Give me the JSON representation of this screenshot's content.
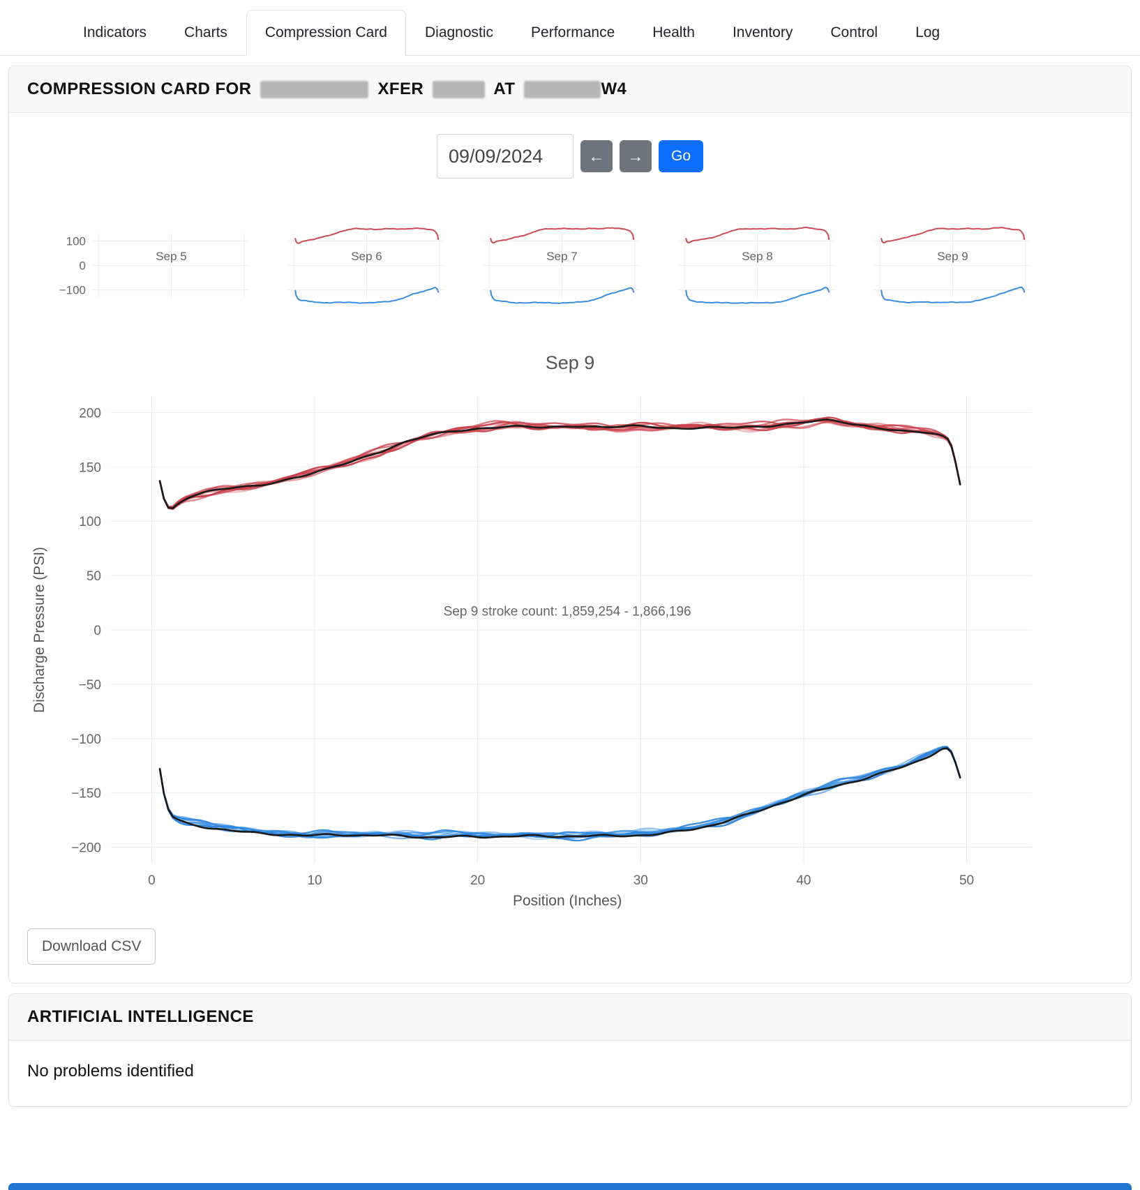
{
  "tabs": {
    "items": [
      {
        "label": "Indicators"
      },
      {
        "label": "Charts"
      },
      {
        "label": "Compression Card"
      },
      {
        "label": "Diagnostic"
      },
      {
        "label": "Performance"
      },
      {
        "label": "Health"
      },
      {
        "label": "Inventory"
      },
      {
        "label": "Control"
      },
      {
        "label": "Log"
      }
    ],
    "active_index": 2
  },
  "card": {
    "title_prefix": "COMPRESSION CARD FOR",
    "title_xfer": "XFER",
    "title_at": "AT",
    "title_suffix": "W4",
    "date_value": "09/09/2024",
    "prev_label": "←",
    "next_label": "→",
    "go_label": "Go",
    "download_label": "Download CSV"
  },
  "mini_charts": {
    "y_ticks": [
      100,
      0,
      -100
    ],
    "days": [
      {
        "label": "Sep 5",
        "has_data": false
      },
      {
        "label": "Sep 6",
        "has_data": true
      },
      {
        "label": "Sep 7",
        "has_data": true
      },
      {
        "label": "Sep 8",
        "has_data": true
      },
      {
        "label": "Sep 9",
        "has_data": true
      }
    ]
  },
  "chart_data": {
    "type": "line",
    "title": "Sep 9",
    "xlabel": "Position (Inches)",
    "ylabel": "Discharge Pressure (PSI)",
    "xlim": [
      0,
      50
    ],
    "ylim": [
      -200,
      200
    ],
    "x_ticks": [
      0,
      10,
      20,
      30,
      40,
      50
    ],
    "y_ticks": [
      -200,
      -150,
      -100,
      -50,
      0,
      50,
      100,
      150,
      200
    ],
    "grid": true,
    "legend": false,
    "annotation": "Sep 9 stroke count: 1,859,254 - 1,866,196",
    "series": [
      {
        "name": "discharge-pressure-strokes",
        "color": "#c9404a",
        "overlay_color": "#1a1a1a",
        "points": [
          [
            0.5,
            137
          ],
          [
            0.75,
            104
          ],
          [
            1.3,
            113
          ],
          [
            2.2,
            122
          ],
          [
            3.5,
            127
          ],
          [
            5,
            131
          ],
          [
            6.5,
            134
          ],
          [
            8,
            139
          ],
          [
            9.5,
            144
          ],
          [
            11,
            150
          ],
          [
            12.5,
            157
          ],
          [
            14,
            164
          ],
          [
            15.5,
            172
          ],
          [
            17,
            179
          ],
          [
            18.5,
            184
          ],
          [
            20,
            187
          ],
          [
            22,
            189
          ],
          [
            24,
            187
          ],
          [
            26,
            188
          ],
          [
            28,
            186
          ],
          [
            30,
            188
          ],
          [
            32,
            187
          ],
          [
            34,
            188
          ],
          [
            36,
            187
          ],
          [
            38,
            188
          ],
          [
            40,
            191
          ],
          [
            41.5,
            193
          ],
          [
            43,
            190
          ],
          [
            44.5,
            188
          ],
          [
            46,
            185
          ],
          [
            47.5,
            183
          ],
          [
            48.6,
            179
          ],
          [
            49.3,
            170
          ],
          [
            49.6,
            134
          ]
        ]
      },
      {
        "name": "suction-pressure-strokes",
        "color": "#2e86de",
        "overlay_color": "#1a1a1a",
        "points": [
          [
            0.5,
            -128
          ],
          [
            0.75,
            -166
          ],
          [
            1.3,
            -173
          ],
          [
            2.2,
            -178
          ],
          [
            3.5,
            -181
          ],
          [
            5,
            -184
          ],
          [
            6.5,
            -186
          ],
          [
            8,
            -188
          ],
          [
            9.5,
            -190
          ],
          [
            11,
            -189
          ],
          [
            13,
            -190
          ],
          [
            15,
            -189
          ],
          [
            17,
            -190
          ],
          [
            19,
            -189
          ],
          [
            21,
            -190
          ],
          [
            23,
            -190
          ],
          [
            25,
            -191
          ],
          [
            27,
            -190
          ],
          [
            29,
            -189
          ],
          [
            31,
            -187
          ],
          [
            33,
            -183
          ],
          [
            34.5,
            -179
          ],
          [
            36,
            -173
          ],
          [
            37.5,
            -166
          ],
          [
            39,
            -158
          ],
          [
            40.5,
            -150
          ],
          [
            42,
            -143
          ],
          [
            43.5,
            -137
          ],
          [
            45,
            -130
          ],
          [
            46.5,
            -123
          ],
          [
            47.8,
            -115
          ],
          [
            48.8,
            -107
          ],
          [
            49.3,
            -113
          ],
          [
            49.6,
            -136
          ]
        ]
      }
    ]
  },
  "ai": {
    "title": "ARTIFICIAL INTELLIGENCE",
    "body": "No problems identified"
  },
  "colors": {
    "accent": "#0d6efd",
    "secondary": "#6c757d",
    "red": "#c9404a",
    "blue": "#2e86de",
    "grid": "#e9e9e9",
    "tick_text": "#666666"
  }
}
